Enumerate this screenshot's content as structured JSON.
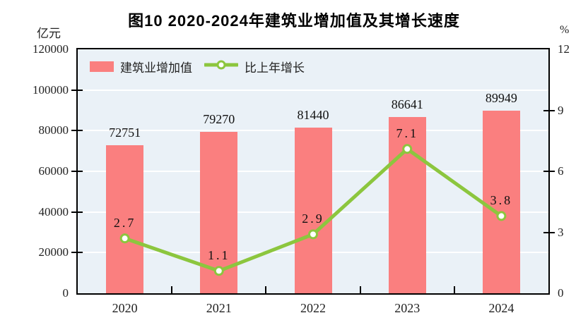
{
  "chart_data": {
    "type": "bar+line combo",
    "title": "图10  2020-2024年建筑业增加值及其增长速度",
    "categories": [
      "2020",
      "2021",
      "2022",
      "2023",
      "2024"
    ],
    "series": [
      {
        "name": "建筑业增加值",
        "type": "bar",
        "axis": "left",
        "values": [
          72751,
          79270,
          81440,
          86641,
          89949
        ],
        "labels": [
          "72751",
          "79270",
          "81440",
          "86641",
          "89949"
        ],
        "color": "#fa7f7f"
      },
      {
        "name": "比上年增长",
        "type": "line",
        "axis": "right",
        "values": [
          2.7,
          1.1,
          2.9,
          7.1,
          3.8
        ],
        "labels": [
          "2.7",
          "1.1",
          "2.9",
          "7.1",
          "3.8"
        ],
        "color": "#8cc63e",
        "marker": "circle-white-fill-green-ring"
      }
    ],
    "left_axis": {
      "unit": "亿元",
      "min": 0,
      "max": 120000,
      "tick_step": 20000,
      "ticks": [
        "0",
        "20000",
        "40000",
        "60000",
        "80000",
        "100000",
        "120000"
      ]
    },
    "right_axis": {
      "unit": "%",
      "min": 0,
      "max": 12,
      "tick_step": 3,
      "ticks": [
        "0",
        "3",
        "6",
        "9",
        "12"
      ]
    },
    "layout_hints": {
      "legend_position": "top-left-inside",
      "grid": "horizontal-white-lines",
      "plot_background": "#eaf1f7",
      "grid_color": "#ffffff",
      "frame_color": "#000000",
      "text_color": "#222222"
    }
  }
}
